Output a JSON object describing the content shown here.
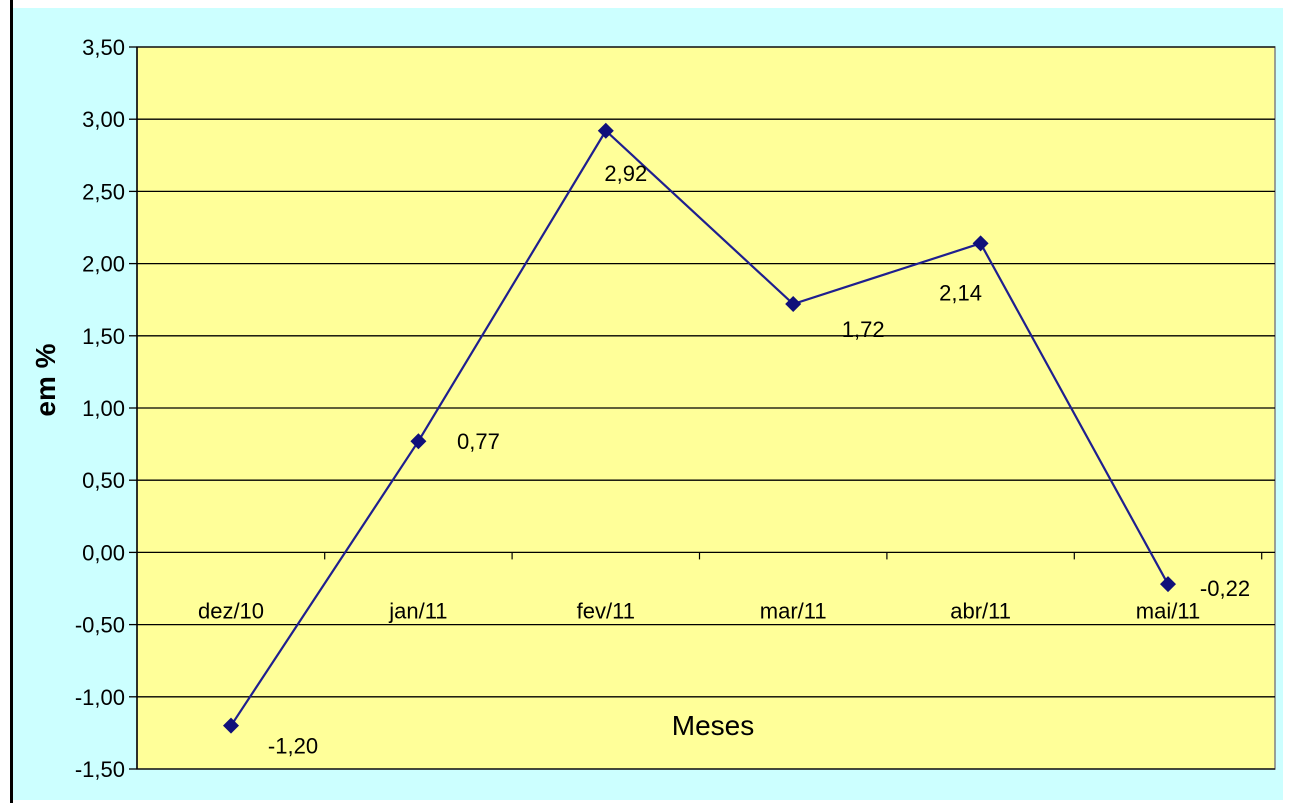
{
  "chart_data": {
    "type": "line",
    "categories": [
      "dez/10",
      "jan/11",
      "fev/11",
      "mar/11",
      "abr/11",
      "mai/11"
    ],
    "series": [
      {
        "values": [
          -1.2,
          0.77,
          2.92,
          1.72,
          2.14,
          -0.22
        ]
      }
    ],
    "data_labels": [
      "-1,20",
      "0,77",
      "2,92",
      "1,72",
      "2,14",
      "-0,22"
    ],
    "title": "",
    "xlabel": "Meses",
    "ylabel": "em %",
    "ylim": [
      -1.5,
      3.5
    ],
    "yticks": [
      3.5,
      3.0,
      2.5,
      2.0,
      1.5,
      1.0,
      0.5,
      0.0,
      -0.5,
      -1.0,
      -1.5
    ],
    "ytick_labels": [
      "3,50",
      "3,00",
      "2,50",
      "2,00",
      "1,50",
      "1,00",
      "0,50",
      "0,00",
      "-0,50",
      "-1,00",
      "-1,50"
    ],
    "grid": true,
    "legend": "none",
    "colors": {
      "plot_background": "#ffff99",
      "outer_background": "#ccffff",
      "series_line": "#1f1f8f",
      "marker": "#10107a",
      "gridline": "#000000"
    }
  }
}
